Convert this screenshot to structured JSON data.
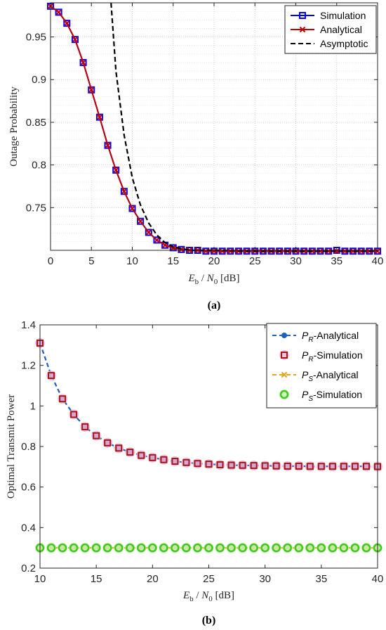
{
  "chart_data": [
    {
      "type": "line",
      "caption": "(a)",
      "xlabel": "E_b / N_0 [dB]",
      "xlabel_parts": {
        "e": "E",
        "b_sub": "b",
        "slash": " / ",
        "n": "N",
        "n_sub": "0",
        "unit": " [dB]"
      },
      "ylabel": "Outage Probability",
      "xlim": [
        0,
        40
      ],
      "ylim": [
        0.7,
        0.99
      ],
      "xticks": [
        0,
        5,
        10,
        15,
        20,
        25,
        30,
        35,
        40
      ],
      "yticks": [
        0.75,
        0.8,
        0.85,
        0.9,
        0.95
      ],
      "ytick_labels": [
        "0.75",
        "0.8",
        "0.85",
        "0.9",
        "0.95"
      ],
      "grid": true,
      "legend_position": "top-right",
      "series": [
        {
          "name": "Simulation",
          "color": "#0000ff",
          "marker": "square",
          "x": [
            0,
            1,
            2,
            3,
            4,
            5,
            6,
            7,
            8,
            9,
            10,
            11,
            12,
            13,
            14,
            15,
            16,
            17,
            18,
            19,
            20,
            21,
            22,
            23,
            24,
            25,
            26,
            27,
            28,
            29,
            30,
            31,
            32,
            33,
            34,
            35,
            36,
            37,
            38,
            39,
            40
          ],
          "y": [
            0.986,
            0.979,
            0.966,
            0.947,
            0.92,
            0.888,
            0.856,
            0.823,
            0.794,
            0.769,
            0.749,
            0.734,
            0.721,
            0.712,
            0.706,
            0.703,
            0.701,
            0.7,
            0.7,
            0.699,
            0.699,
            0.699,
            0.699,
            0.699,
            0.699,
            0.699,
            0.699,
            0.699,
            0.699,
            0.699,
            0.699,
            0.699,
            0.699,
            0.699,
            0.699,
            0.7,
            0.699,
            0.699,
            0.699,
            0.699,
            0.699
          ]
        },
        {
          "name": "Analytical",
          "color": "#c00000",
          "marker": "x",
          "x": [
            0,
            1,
            2,
            3,
            4,
            5,
            6,
            7,
            8,
            9,
            10,
            11,
            12,
            13,
            14,
            15,
            16,
            17,
            18,
            19,
            20,
            21,
            22,
            23,
            24,
            25,
            26,
            27,
            28,
            29,
            30,
            31,
            32,
            33,
            34,
            35,
            36,
            37,
            38,
            39,
            40
          ],
          "y": [
            0.986,
            0.979,
            0.966,
            0.947,
            0.92,
            0.888,
            0.856,
            0.823,
            0.794,
            0.769,
            0.749,
            0.734,
            0.721,
            0.712,
            0.706,
            0.703,
            0.701,
            0.7,
            0.7,
            0.699,
            0.699,
            0.699,
            0.699,
            0.699,
            0.699,
            0.699,
            0.699,
            0.699,
            0.699,
            0.699,
            0.699,
            0.699,
            0.699,
            0.699,
            0.699,
            0.699,
            0.699,
            0.699,
            0.699,
            0.699,
            0.699
          ]
        },
        {
          "name": "Asymptotic",
          "color": "#000000",
          "marker": "none",
          "dash": true,
          "x": [
            7.4,
            8,
            9,
            10,
            11,
            12,
            13,
            14,
            15,
            16,
            17,
            18,
            20,
            25,
            30,
            35,
            40
          ],
          "y": [
            0.99,
            0.91,
            0.835,
            0.785,
            0.753,
            0.732,
            0.718,
            0.709,
            0.704,
            0.702,
            0.7,
            0.7,
            0.7,
            0.699,
            0.699,
            0.699,
            0.699
          ]
        }
      ]
    },
    {
      "type": "line",
      "caption": "(b)",
      "xlabel": "E_b / N_0 [dB]",
      "xlabel_parts": {
        "e": "E",
        "b_sub": "b",
        "slash": " / ",
        "n": "N",
        "n_sub": "0",
        "unit": " [dB]"
      },
      "ylabel": "Optimal Transmit Power",
      "xlim": [
        10,
        40
      ],
      "ylim": [
        0.2,
        1.4
      ],
      "xticks": [
        10,
        15,
        20,
        25,
        30,
        35,
        40
      ],
      "yticks": [
        0.2,
        0.4,
        0.6,
        0.8,
        1,
        1.2,
        1.4
      ],
      "ytick_labels": [
        "0.2",
        "0.4",
        "0.6",
        "0.8",
        "1",
        "1.2",
        "1.4"
      ],
      "grid": false,
      "legend_position": "top-right",
      "series": [
        {
          "name": "P_R-Analytical",
          "legend_parts": {
            "p": "P",
            "sub": "R",
            "rest": "-Analytical"
          },
          "color": "#1f5fbf",
          "marker": "circle",
          "dash": true,
          "x": [
            10,
            11,
            12,
            13,
            14,
            15,
            16,
            17,
            18,
            19,
            20,
            21,
            22,
            23,
            24,
            25,
            26,
            27,
            28,
            29,
            30,
            31,
            32,
            33,
            34,
            35,
            36,
            37,
            38,
            39,
            40
          ],
          "y": [
            1.31,
            1.15,
            1.035,
            0.958,
            0.897,
            0.853,
            0.818,
            0.792,
            0.772,
            0.756,
            0.745,
            0.735,
            0.727,
            0.721,
            0.716,
            0.713,
            0.71,
            0.708,
            0.707,
            0.706,
            0.705,
            0.704,
            0.703,
            0.703,
            0.702,
            0.702,
            0.702,
            0.702,
            0.702,
            0.702,
            0.701
          ]
        },
        {
          "name": "P_R-Simulation",
          "legend_parts": {
            "p": "P",
            "sub": "R",
            "rest": "-Simulation"
          },
          "color": "#a01818",
          "halo": "#f6b4d8",
          "marker": "square",
          "x": [
            10,
            11,
            12,
            13,
            14,
            15,
            16,
            17,
            18,
            19,
            20,
            21,
            22,
            23,
            24,
            25,
            26,
            27,
            28,
            29,
            30,
            31,
            32,
            33,
            34,
            35,
            36,
            37,
            38,
            39,
            40
          ],
          "y": [
            1.31,
            1.15,
            1.035,
            0.958,
            0.897,
            0.853,
            0.818,
            0.792,
            0.772,
            0.756,
            0.745,
            0.735,
            0.727,
            0.721,
            0.716,
            0.713,
            0.71,
            0.708,
            0.707,
            0.706,
            0.705,
            0.704,
            0.703,
            0.703,
            0.702,
            0.702,
            0.702,
            0.702,
            0.702,
            0.702,
            0.701
          ]
        },
        {
          "name": "P_S-Analytical",
          "legend_parts": {
            "p": "P",
            "sub": "S",
            "rest": "-Analytical"
          },
          "color": "#e0a81c",
          "marker": "x",
          "dash": true,
          "x": [
            10,
            11,
            12,
            13,
            14,
            15,
            16,
            17,
            18,
            19,
            20,
            21,
            22,
            23,
            24,
            25,
            26,
            27,
            28,
            29,
            30,
            31,
            32,
            33,
            34,
            35,
            36,
            37,
            38,
            39,
            40
          ],
          "y": [
            0.3,
            0.3,
            0.3,
            0.3,
            0.3,
            0.3,
            0.3,
            0.3,
            0.3,
            0.3,
            0.3,
            0.3,
            0.3,
            0.3,
            0.3,
            0.3,
            0.3,
            0.3,
            0.3,
            0.3,
            0.3,
            0.3,
            0.3,
            0.3,
            0.3,
            0.3,
            0.3,
            0.3,
            0.3,
            0.3,
            0.3
          ]
        },
        {
          "name": "P_S-Simulation",
          "legend_parts": {
            "p": "P",
            "sub": "S",
            "rest": "-Simulation"
          },
          "color": "#3ec91c",
          "halo": "#c8f0b4",
          "marker": "circle-open",
          "x": [
            10,
            11,
            12,
            13,
            14,
            15,
            16,
            17,
            18,
            19,
            20,
            21,
            22,
            23,
            24,
            25,
            26,
            27,
            28,
            29,
            30,
            31,
            32,
            33,
            34,
            35,
            36,
            37,
            38,
            39,
            40
          ],
          "y": [
            0.3,
            0.3,
            0.3,
            0.3,
            0.3,
            0.3,
            0.3,
            0.3,
            0.3,
            0.3,
            0.3,
            0.3,
            0.3,
            0.3,
            0.3,
            0.3,
            0.3,
            0.3,
            0.3,
            0.3,
            0.3,
            0.3,
            0.3,
            0.3,
            0.3,
            0.3,
            0.3,
            0.3,
            0.3,
            0.3,
            0.3
          ]
        }
      ]
    }
  ]
}
